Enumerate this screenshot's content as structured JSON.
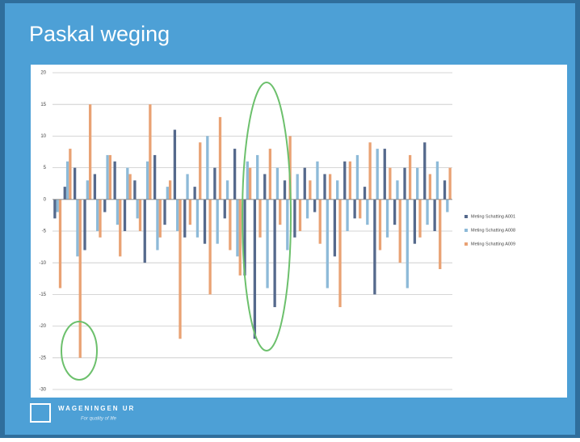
{
  "slide": {
    "title": "Paskal weging",
    "logo": "WAGENINGEN UR",
    "tagline": "For quality of life"
  },
  "chart_data": {
    "type": "bar",
    "categories": [
      null,
      null,
      null,
      null,
      null,
      null,
      null,
      null,
      null,
      null,
      null,
      null,
      null,
      null,
      null,
      null,
      null,
      null,
      null,
      null,
      null,
      null,
      null,
      null,
      null,
      null,
      null,
      null,
      null,
      null,
      null,
      null,
      null,
      null,
      null,
      null,
      null,
      null,
      null,
      null
    ],
    "series": [
      {
        "name": "Meting Schatting A001",
        "color": "#55698c",
        "values": [
          -3,
          2,
          5,
          -8,
          4,
          -2,
          6,
          -5,
          3,
          -10,
          7,
          -4,
          11,
          -6,
          2,
          -7,
          5,
          -3,
          8,
          -12,
          -22,
          4,
          -17,
          3,
          -6,
          5,
          -2,
          4,
          -9,
          6,
          -3,
          2,
          -15,
          8,
          -4,
          5,
          -7,
          9,
          -5,
          3
        ]
      },
      {
        "name": "Meting Schatting A008",
        "color": "#8dbad8",
        "values": [
          -2,
          6,
          -9,
          3,
          -5,
          7,
          -4,
          5,
          -3,
          6,
          -8,
          2,
          -5,
          4,
          -6,
          10,
          -7,
          3,
          -9,
          6,
          7,
          -14,
          5,
          -8,
          4,
          -3,
          6,
          -14,
          3,
          -5,
          7,
          -4,
          8,
          -6,
          3,
          -14,
          5,
          -4,
          6,
          -2
        ]
      },
      {
        "name": "Meting Schatting A009",
        "color": "#e9a274",
        "values": [
          -14,
          8,
          -25,
          15,
          -6,
          7,
          -9,
          4,
          -5,
          15,
          -6,
          3,
          -22,
          -4,
          9,
          -15,
          13,
          -8,
          -12,
          5,
          -6,
          8,
          -4,
          10,
          -5,
          3,
          -7,
          4,
          -17,
          6,
          -3,
          9,
          -8,
          5,
          -10,
          7,
          -6,
          4,
          -11,
          5
        ]
      }
    ],
    "ylim": [
      -30,
      20
    ],
    "yticks": [
      -30,
      -25,
      -20,
      -15,
      -10,
      -5,
      0,
      5,
      10,
      15,
      20
    ],
    "grid": true,
    "legend": "right"
  }
}
